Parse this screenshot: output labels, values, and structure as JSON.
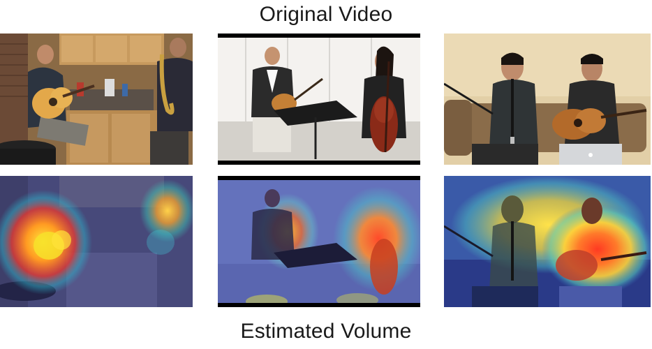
{
  "captions": {
    "top": "Original Video",
    "bottom": "Estimated Volume"
  }
}
